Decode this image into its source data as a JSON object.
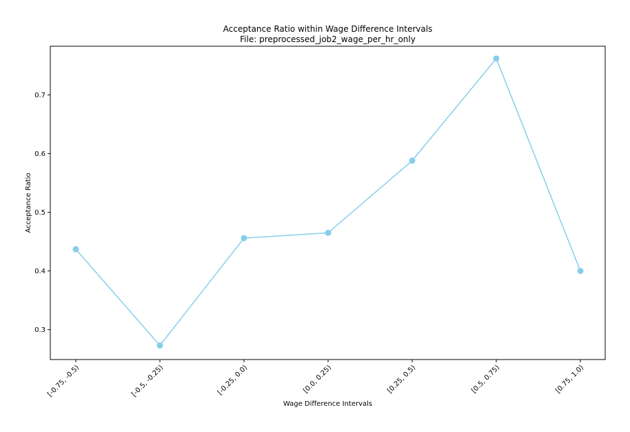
{
  "chart_data": {
    "type": "line",
    "title": "Acceptance Ratio within Wage Difference Intervals",
    "subtitle": "File: preprocessed_job2_wage_per_hr_only",
    "xlabel": "Wage Difference Intervals",
    "ylabel": "Acceptance Ratio",
    "categories": [
      "[-0.75, -0.5)",
      "[-0.5, -0.25)",
      "[-0.25, 0.0)",
      "[0.0, 0.25)",
      "[0.25, 0.5)",
      "[0.5, 0.75)",
      "[0.75, 1.0)"
    ],
    "values": [
      0.437,
      0.273,
      0.456,
      0.465,
      0.588,
      0.762,
      0.4
    ],
    "ylim": [
      0.249,
      0.783
    ],
    "yticks": [
      0.3,
      0.4,
      0.5,
      0.6,
      0.7
    ],
    "ytick_labels": [
      "0.3",
      "0.4",
      "0.5",
      "0.6",
      "0.7"
    ],
    "grid": false,
    "line_color": "#87ceeb",
    "marker_color": "#87ceeb"
  }
}
